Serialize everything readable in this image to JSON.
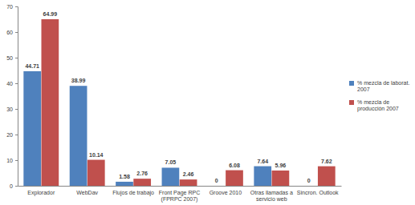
{
  "chart_data": {
    "type": "bar",
    "categories": [
      "Explorador",
      "WebDav",
      "Flujos de trabajo",
      "Front Page RPC (FPRPC 2007)",
      "Groove 2010",
      "Otras llamadas a servicio web",
      "Sincron. Outlook"
    ],
    "series": [
      {
        "name": "% mezcla de laborat. 2007",
        "color": "#4f81bd",
        "values": [
          44.71,
          38.99,
          1.58,
          7.05,
          0,
          7.64,
          0
        ]
      },
      {
        "name": "% mezcla de producción 2007",
        "color": "#c0504d",
        "values": [
          64.99,
          10.14,
          2.76,
          2.46,
          6.08,
          5.96,
          7.62
        ]
      }
    ],
    "ylim": [
      0,
      70
    ],
    "yticks": [
      0,
      10,
      20,
      30,
      40,
      50,
      60,
      70
    ],
    "grid": false,
    "legend": "right",
    "data_labels": true
  }
}
